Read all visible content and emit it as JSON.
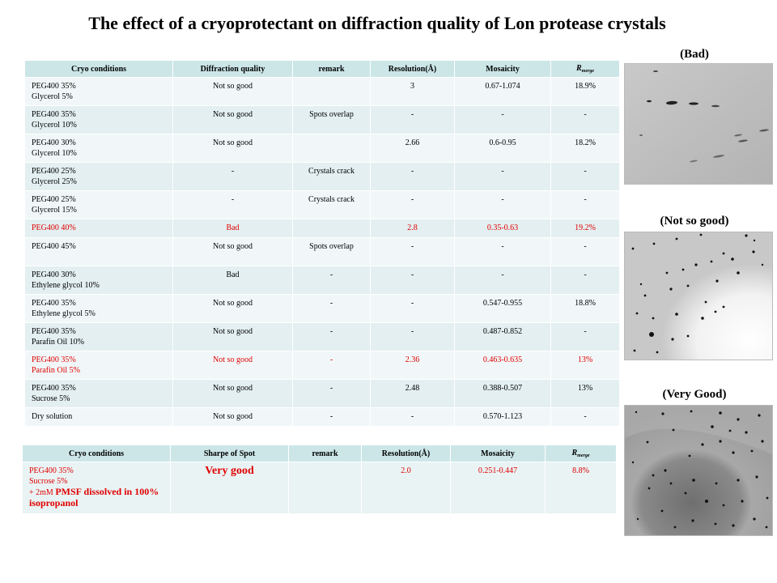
{
  "title": "The effect of a cryoprotectant on diffraction quality of Lon protease crystals",
  "table1": {
    "headers": [
      "Cryo conditions",
      "Diffraction quality",
      "remark",
      "Resolution(Å)",
      "Mosaicity",
      "R",
      "merge"
    ],
    "rows": [
      {
        "cond1": "PEG400 35%",
        "cond2": "Glycerol 5%",
        "quality": "Not so good",
        "remark": "",
        "resolution": "3",
        "mosaicity": "0.67-1.074",
        "rmerge": "18.9%"
      },
      {
        "cond1": "PEG400 35%",
        "cond2": "Glycerol 10%",
        "quality": "Not so good",
        "remark": "Spots overlap",
        "resolution": "-",
        "mosaicity": "-",
        "rmerge": "-"
      },
      {
        "cond1": "PEG400 30%",
        "cond2": "Glycerol 10%",
        "quality": "Not so good",
        "remark": "",
        "resolution": "2.66",
        "mosaicity": "0.6-0.95",
        "rmerge": "18.2%"
      },
      {
        "cond1": "PEG400 25%",
        "cond2": "Glycerol 25%",
        "quality": "-",
        "remark": "Crystals crack",
        "resolution": "-",
        "mosaicity": "-",
        "rmerge": "-"
      },
      {
        "cond1": "PEG400 25%",
        "cond2": "Glycerol 15%",
        "quality": "-",
        "remark": "Crystals crack",
        "resolution": "-",
        "mosaicity": "-",
        "rmerge": "-"
      },
      {
        "cond1": "PEG400 40%",
        "cond2": "",
        "quality": "Bad",
        "remark": "",
        "resolution": "2.8",
        "mosaicity": "0.35-0.63",
        "rmerge": "19.2%",
        "highlight": true
      },
      {
        "cond1": "PEG400 45%",
        "cond2": "",
        "quality": "Not so good",
        "remark": "Spots overlap",
        "resolution": "-",
        "mosaicity": "-",
        "rmerge": "-"
      },
      {
        "cond1": "PEG400 30%",
        "cond2": "Ethylene glycol 10%",
        "quality": "Bad",
        "remark": "-",
        "resolution": "-",
        "mosaicity": "-",
        "rmerge": "-"
      },
      {
        "cond1": "PEG400 35%",
        "cond2": "Ethylene glycol 5%",
        "quality": "Not so good",
        "remark": "-",
        "resolution": "-",
        "mosaicity": "0.547-0.955",
        "rmerge": "18.8%"
      },
      {
        "cond1": "PEG400 35%",
        "cond2": "Parafin Oil 10%",
        "quality": "Not so good",
        "remark": "-",
        "resolution": "-",
        "mosaicity": "0.487-0.852",
        "rmerge": "-"
      },
      {
        "cond1": "PEG400 35%",
        "cond2": "Parafin Oil 5%",
        "quality": "Not so good",
        "remark": "-",
        "resolution": "2.36",
        "mosaicity": "0.463-0.635",
        "rmerge": "13%",
        "highlight": true
      },
      {
        "cond1": "PEG400 35%",
        "cond2": "Sucrose 5%",
        "quality": "Not so good",
        "remark": "-",
        "resolution": "2.48",
        "mosaicity": "0.388-0.507",
        "rmerge": "13%"
      },
      {
        "cond1": "Dry solution",
        "cond2": "",
        "quality": "Not so good",
        "remark": "-",
        "resolution": "-",
        "mosaicity": "0.570-1.123",
        "rmerge": "-"
      }
    ]
  },
  "table2": {
    "headers": [
      "Cryo conditions",
      "Sharpe of Spot",
      "remark",
      "Resolution(Å)",
      "Mosaicity",
      "R",
      "merge"
    ],
    "row": {
      "cond1": "PEG400 35%",
      "cond2": "Sucrose 5%",
      "cond3_prefix": "+ 2mM ",
      "cond3_main": "PMSF dissolved in 100% isopropanol",
      "quality": "Very good",
      "remark": "",
      "resolution": "2.0",
      "mosaicity": "0.251-0.447",
      "rmerge": "8.8%"
    }
  },
  "panels": {
    "bad": "(Bad)",
    "not_so_good": "(Not so good)",
    "very_good": "(Very Good)"
  },
  "colors": {
    "highlight": "#e00000",
    "header_bg": "#cce6e8"
  }
}
